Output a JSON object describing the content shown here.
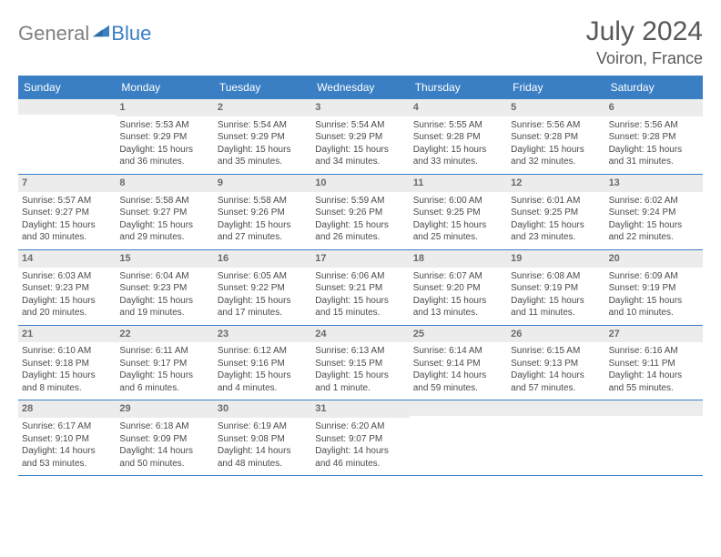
{
  "brand": {
    "part1": "General",
    "part2": "Blue"
  },
  "title": "July 2024",
  "location": "Voiron, France",
  "colors": {
    "accent": "#3a7fc4",
    "header_text": "#595959",
    "body_text": "#4a4a4a",
    "daynum_bg": "#ececec",
    "logo_gray": "#808080"
  },
  "dayNames": [
    "Sunday",
    "Monday",
    "Tuesday",
    "Wednesday",
    "Thursday",
    "Friday",
    "Saturday"
  ],
  "weeks": [
    [
      null,
      {
        "n": 1,
        "rise": "5:53 AM",
        "set": "9:29 PM",
        "dl": "15 hours and 36 minutes."
      },
      {
        "n": 2,
        "rise": "5:54 AM",
        "set": "9:29 PM",
        "dl": "15 hours and 35 minutes."
      },
      {
        "n": 3,
        "rise": "5:54 AM",
        "set": "9:29 PM",
        "dl": "15 hours and 34 minutes."
      },
      {
        "n": 4,
        "rise": "5:55 AM",
        "set": "9:28 PM",
        "dl": "15 hours and 33 minutes."
      },
      {
        "n": 5,
        "rise": "5:56 AM",
        "set": "9:28 PM",
        "dl": "15 hours and 32 minutes."
      },
      {
        "n": 6,
        "rise": "5:56 AM",
        "set": "9:28 PM",
        "dl": "15 hours and 31 minutes."
      }
    ],
    [
      {
        "n": 7,
        "rise": "5:57 AM",
        "set": "9:27 PM",
        "dl": "15 hours and 30 minutes."
      },
      {
        "n": 8,
        "rise": "5:58 AM",
        "set": "9:27 PM",
        "dl": "15 hours and 29 minutes."
      },
      {
        "n": 9,
        "rise": "5:58 AM",
        "set": "9:26 PM",
        "dl": "15 hours and 27 minutes."
      },
      {
        "n": 10,
        "rise": "5:59 AM",
        "set": "9:26 PM",
        "dl": "15 hours and 26 minutes."
      },
      {
        "n": 11,
        "rise": "6:00 AM",
        "set": "9:25 PM",
        "dl": "15 hours and 25 minutes."
      },
      {
        "n": 12,
        "rise": "6:01 AM",
        "set": "9:25 PM",
        "dl": "15 hours and 23 minutes."
      },
      {
        "n": 13,
        "rise": "6:02 AM",
        "set": "9:24 PM",
        "dl": "15 hours and 22 minutes."
      }
    ],
    [
      {
        "n": 14,
        "rise": "6:03 AM",
        "set": "9:23 PM",
        "dl": "15 hours and 20 minutes."
      },
      {
        "n": 15,
        "rise": "6:04 AM",
        "set": "9:23 PM",
        "dl": "15 hours and 19 minutes."
      },
      {
        "n": 16,
        "rise": "6:05 AM",
        "set": "9:22 PM",
        "dl": "15 hours and 17 minutes."
      },
      {
        "n": 17,
        "rise": "6:06 AM",
        "set": "9:21 PM",
        "dl": "15 hours and 15 minutes."
      },
      {
        "n": 18,
        "rise": "6:07 AM",
        "set": "9:20 PM",
        "dl": "15 hours and 13 minutes."
      },
      {
        "n": 19,
        "rise": "6:08 AM",
        "set": "9:19 PM",
        "dl": "15 hours and 11 minutes."
      },
      {
        "n": 20,
        "rise": "6:09 AM",
        "set": "9:19 PM",
        "dl": "15 hours and 10 minutes."
      }
    ],
    [
      {
        "n": 21,
        "rise": "6:10 AM",
        "set": "9:18 PM",
        "dl": "15 hours and 8 minutes."
      },
      {
        "n": 22,
        "rise": "6:11 AM",
        "set": "9:17 PM",
        "dl": "15 hours and 6 minutes."
      },
      {
        "n": 23,
        "rise": "6:12 AM",
        "set": "9:16 PM",
        "dl": "15 hours and 4 minutes."
      },
      {
        "n": 24,
        "rise": "6:13 AM",
        "set": "9:15 PM",
        "dl": "15 hours and 1 minute."
      },
      {
        "n": 25,
        "rise": "6:14 AM",
        "set": "9:14 PM",
        "dl": "14 hours and 59 minutes."
      },
      {
        "n": 26,
        "rise": "6:15 AM",
        "set": "9:13 PM",
        "dl": "14 hours and 57 minutes."
      },
      {
        "n": 27,
        "rise": "6:16 AM",
        "set": "9:11 PM",
        "dl": "14 hours and 55 minutes."
      }
    ],
    [
      {
        "n": 28,
        "rise": "6:17 AM",
        "set": "9:10 PM",
        "dl": "14 hours and 53 minutes."
      },
      {
        "n": 29,
        "rise": "6:18 AM",
        "set": "9:09 PM",
        "dl": "14 hours and 50 minutes."
      },
      {
        "n": 30,
        "rise": "6:19 AM",
        "set": "9:08 PM",
        "dl": "14 hours and 48 minutes."
      },
      {
        "n": 31,
        "rise": "6:20 AM",
        "set": "9:07 PM",
        "dl": "14 hours and 46 minutes."
      },
      null,
      null,
      null
    ]
  ]
}
